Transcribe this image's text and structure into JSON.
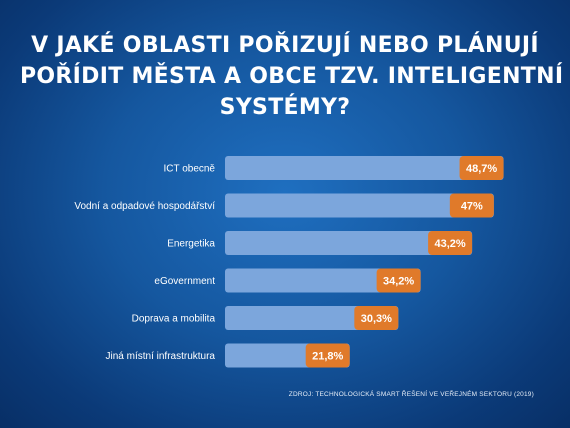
{
  "title_lines": [
    "V JAKÉ OBLASTI POŘIZUJÍ NEBO PLÁNUJÍ",
    "POŘÍDIT MĚSTA A OBCE TZV. INTELIGENTNÍ",
    "SYSTÉMY?"
  ],
  "source": "ZDROJ: TECHNOLOGICKÁ SMART ŘEŠENÍ VE VEŘEJNÉM SEKTORU (2019)",
  "colors": {
    "bar_fill": "#7ca6dc",
    "value_box": "#e07a2a",
    "text": "#ffffff"
  },
  "chart_data": {
    "type": "bar",
    "orientation": "horizontal",
    "categories": [
      "ICT obecně",
      "Vodní a odpadové hospodářství",
      "Energetika",
      "eGovernment",
      "Doprava a mobilita",
      "Jiná místní infrastruktura"
    ],
    "values": [
      48.7,
      47,
      43.2,
      34.2,
      30.3,
      21.8
    ],
    "value_labels": [
      "48,7%",
      "47%",
      "43,2%",
      "34,2%",
      "30,3%",
      "21,8%"
    ],
    "unit": "%",
    "xlim": [
      0,
      50
    ],
    "grid": false,
    "legend": "none"
  }
}
